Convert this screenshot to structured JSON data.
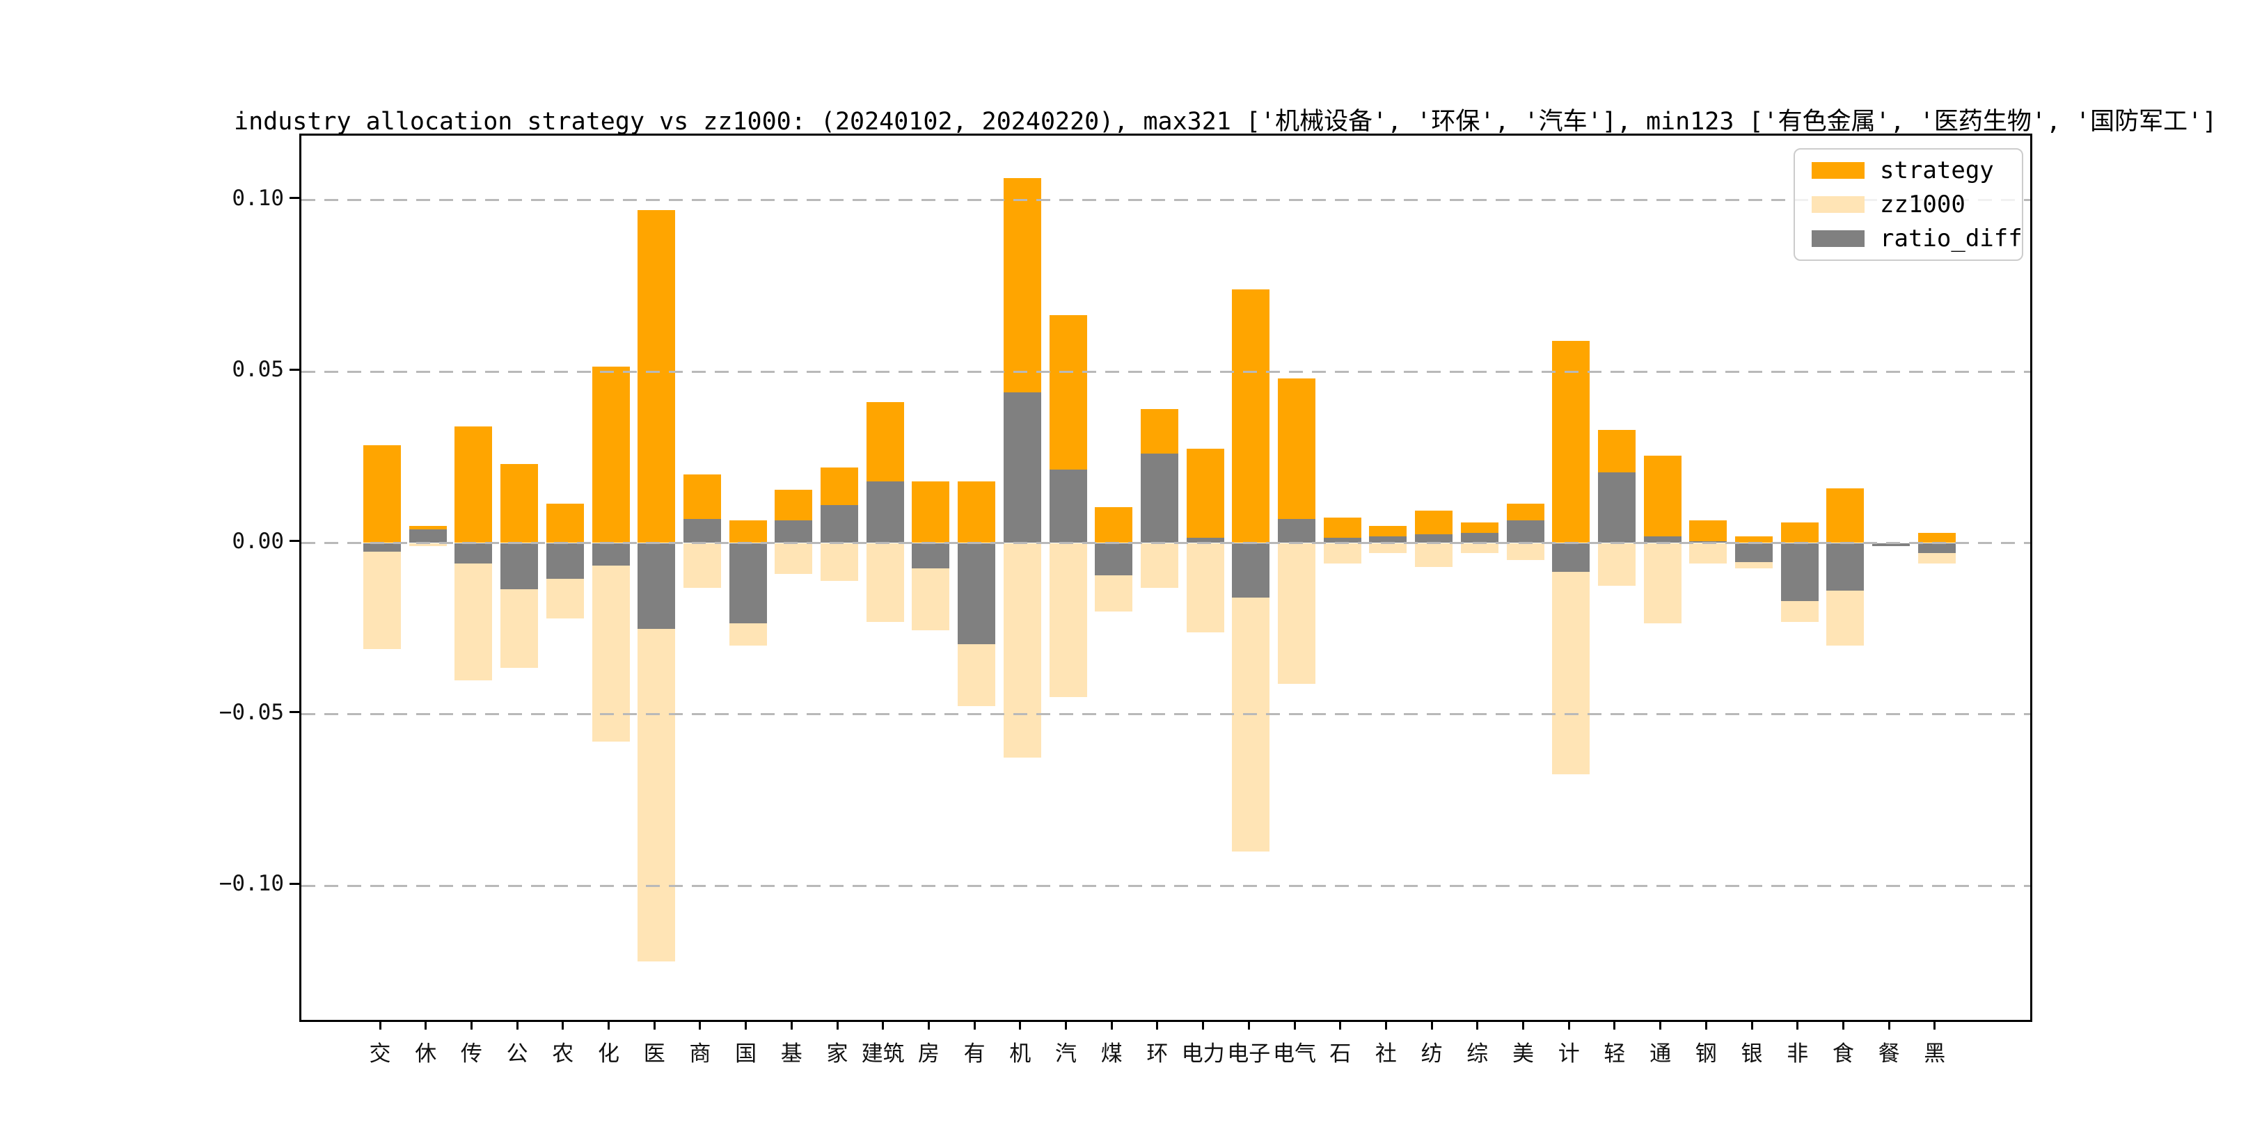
{
  "title": "industry allocation strategy vs zz1000: (20240102, 20240220), max321 ['机械设备', '环保', '汽车'], min123 ['有色金属', '医药生物', '国防军工']",
  "colors": {
    "strategy": "#FFA500",
    "zz1000": "#FFE4B5",
    "ratio_diff": "#808080",
    "gridline": "#b9b9b9",
    "spine": "#000000"
  },
  "legend": {
    "items": [
      {
        "label": "strategy",
        "color": "#FFA500"
      },
      {
        "label": "zz1000",
        "color": "#FFE4B5"
      },
      {
        "label": "ratio_diff",
        "color": "#808080"
      }
    ],
    "position": "upper-right"
  },
  "chart_data": {
    "type": "bar",
    "title": "industry allocation strategy vs zz1000: (20240102, 20240220), max321 ['机械设备', '环保', '汽车'], min123 ['有色金属', '医药生物', '国防军工']",
    "xlabel": "",
    "ylabel": "",
    "grid": true,
    "legend_position": "upper-right",
    "ylim": [
      -0.139,
      0.119
    ],
    "yticks": [
      {
        "value": 0.1,
        "label": "0.10"
      },
      {
        "value": 0.05,
        "label": "0.05"
      },
      {
        "value": 0.0,
        "label": "0.00"
      },
      {
        "value": -0.05,
        "label": "−0.05"
      },
      {
        "value": -0.1,
        "label": "−0.10"
      }
    ],
    "categories": [
      "交",
      "休",
      "传",
      "公",
      "农",
      "化",
      "医",
      "商",
      "国",
      "基",
      "家",
      "建筑",
      "房",
      "有",
      "机",
      "汽",
      "煤",
      "环",
      "电力",
      "电子",
      "电气",
      "石",
      "社",
      "纺",
      "综",
      "美",
      "计",
      "轻",
      "通",
      "钢",
      "银",
      "非",
      "食",
      "餐",
      "黑"
    ],
    "series": [
      {
        "name": "strategy",
        "direction": "up",
        "color": "#FFA500",
        "values": [
          0.0285,
          0.005,
          0.034,
          0.023,
          0.0115,
          0.0515,
          0.097,
          0.02,
          0.0065,
          0.0155,
          0.022,
          0.041,
          0.018,
          0.018,
          0.1065,
          0.0665,
          0.0105,
          0.039,
          0.0275,
          0.074,
          0.048,
          0.0075,
          0.005,
          0.0095,
          0.006,
          0.0115,
          0.059,
          0.033,
          0.0255,
          0.0065,
          0.002,
          0.006,
          0.016,
          0.0,
          0.003
        ]
      },
      {
        "name": "zz1000",
        "direction": "down",
        "color": "#FFE4B5",
        "values": [
          0.031,
          0.001,
          0.04,
          0.0365,
          0.022,
          0.058,
          0.122,
          0.013,
          0.03,
          0.009,
          0.011,
          0.023,
          0.0255,
          0.0475,
          0.0625,
          0.045,
          0.02,
          0.013,
          0.026,
          0.09,
          0.041,
          0.006,
          0.003,
          0.007,
          0.003,
          0.005,
          0.0675,
          0.0125,
          0.0235,
          0.006,
          0.0075,
          0.023,
          0.03,
          0.001,
          0.006
        ]
      },
      {
        "name": "ratio_diff",
        "direction": "signed",
        "color": "#808080",
        "values": [
          -0.0025,
          0.004,
          -0.006,
          -0.0135,
          -0.0105,
          -0.0065,
          -0.025,
          0.007,
          -0.0235,
          0.0065,
          0.011,
          0.018,
          -0.0075,
          -0.0295,
          0.044,
          0.0215,
          -0.0095,
          0.026,
          0.0015,
          -0.016,
          0.007,
          0.0015,
          0.002,
          0.0025,
          0.003,
          0.0065,
          -0.0085,
          0.0205,
          0.002,
          0.0005,
          -0.0055,
          -0.017,
          -0.014,
          -0.001,
          -0.003
        ]
      }
    ]
  }
}
